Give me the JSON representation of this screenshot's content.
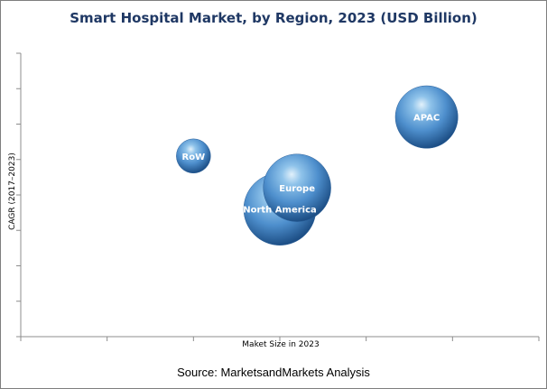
{
  "chart_data": {
    "type": "scatter",
    "title": "Smart Hospital Market, by Region, 2023 (USD Billion)",
    "xlabel": "Maket Size in 2023",
    "ylabel": "CAGR (2017–2023)",
    "grid": false,
    "series": [
      {
        "label": "RoW",
        "x": 2.0,
        "y": 5.1,
        "size": 0.9
      },
      {
        "label": "North America",
        "x": 3.0,
        "y": 3.6,
        "size": 4.0
      },
      {
        "label": "Europe",
        "x": 3.2,
        "y": 4.2,
        "size": 3.5
      },
      {
        "label": "APAC",
        "x": 4.7,
        "y": 6.2,
        "size": 3.0
      }
    ],
    "xlim": [
      0,
      6
    ],
    "ylim": [
      0,
      8
    ],
    "colors": {
      "bubble": "#3f7fc4",
      "title": "#1f3864",
      "axis": "#8c8c8c"
    }
  },
  "source": "Source: MarketsandMarkets Analysis"
}
